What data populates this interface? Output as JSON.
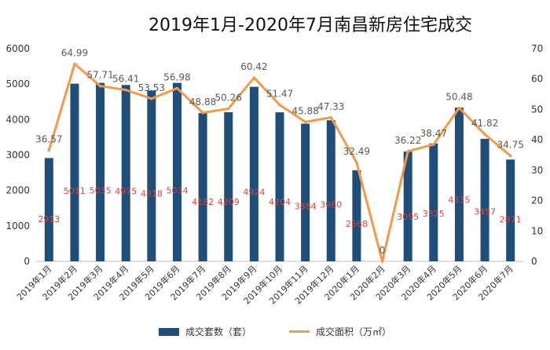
{
  "chart_data": {
    "type": "bar",
    "title": "2019年1月-2020年7月南昌新房住宅成交",
    "categories": [
      "2019年1月",
      "2019年2月",
      "2019年3月",
      "2019年4月",
      "2019年5月",
      "2019年6月",
      "2019年7月",
      "2019年8月",
      "2019年9月",
      "2019年10月",
      "2019年11月",
      "2019年12月",
      "2020年1月",
      "2020年2月",
      "2020年3月",
      "2020年4月",
      "2020年5月",
      "2020年6月",
      "2020年7月"
    ],
    "series": [
      {
        "name": "成交套数（套）",
        "type": "bar",
        "axis": "left",
        "values": [
          2913,
          5011,
          5035,
          4975,
          4818,
          5034,
          4182,
          4209,
          4924,
          4204,
          3884,
          3980,
          2568,
          0,
          3095,
          3325,
          4335,
          3457,
          2871
        ],
        "labels": [
          "2913",
          "5011",
          "5035",
          "4975",
          "4818",
          "5034",
          "4182",
          "4209",
          "4924",
          "4204",
          "3884",
          "3980",
          "2568",
          "",
          "3095",
          "3325",
          "4335",
          "3457",
          "2871"
        ],
        "color": "#1f4e79",
        "label_color": "#d9433a"
      },
      {
        "name": "成交面积（万㎡）",
        "type": "line",
        "axis": "right",
        "values": [
          36.57,
          64.99,
          57.71,
          56.41,
          53.53,
          56.98,
          48.88,
          50.26,
          60.42,
          51.47,
          45.88,
          47.33,
          32.49,
          0,
          36.22,
          38.47,
          50.48,
          41.82,
          34.75
        ],
        "labels": [
          "36.57",
          "64.99",
          "57.71",
          "56.41",
          "53.53",
          "56.98",
          "48.88",
          "50.26",
          "60.42",
          "51.47",
          "45.88",
          "47.33",
          "32.49",
          "0",
          "36.22",
          "38.47",
          "50.48",
          "41.82",
          "34.75"
        ],
        "color": "#f2994a",
        "label_color": "#595959"
      }
    ],
    "y_left": {
      "lim": [
        0,
        6000
      ],
      "ticks": [
        "0",
        "1000",
        "2000",
        "3000",
        "4000",
        "5000",
        "6000"
      ]
    },
    "y_right": {
      "lim": [
        0,
        70
      ],
      "ticks": [
        "0",
        "10",
        "20",
        "30",
        "40",
        "50",
        "60",
        "70"
      ]
    },
    "grid": false,
    "legend": "bottom"
  }
}
